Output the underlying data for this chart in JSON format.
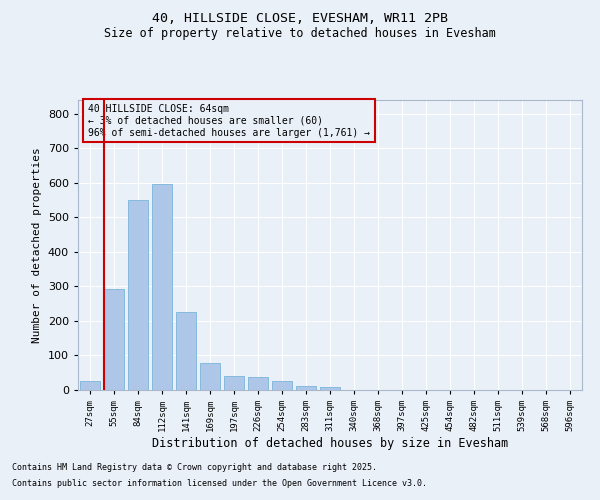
{
  "title1": "40, HILLSIDE CLOSE, EVESHAM, WR11 2PB",
  "title2": "Size of property relative to detached houses in Evesham",
  "xlabel": "Distribution of detached houses by size in Evesham",
  "ylabel": "Number of detached properties",
  "categories": [
    "27sqm",
    "55sqm",
    "84sqm",
    "112sqm",
    "141sqm",
    "169sqm",
    "197sqm",
    "226sqm",
    "254sqm",
    "283sqm",
    "311sqm",
    "340sqm",
    "368sqm",
    "397sqm",
    "425sqm",
    "454sqm",
    "482sqm",
    "511sqm",
    "539sqm",
    "568sqm",
    "596sqm"
  ],
  "values": [
    25,
    293,
    549,
    598,
    226,
    78,
    40,
    38,
    25,
    12,
    8,
    0,
    0,
    0,
    0,
    0,
    0,
    0,
    0,
    0,
    0
  ],
  "bar_color": "#aec6e8",
  "bar_edge_color": "#6aaed6",
  "vline_color": "#cc0000",
  "ylim": [
    0,
    840
  ],
  "yticks": [
    0,
    100,
    200,
    300,
    400,
    500,
    600,
    700,
    800
  ],
  "annotation_title": "40 HILLSIDE CLOSE: 64sqm",
  "annotation_line1": "← 3% of detached houses are smaller (60)",
  "annotation_line2": "96% of semi-detached houses are larger (1,761) →",
  "annotation_box_color": "#cc0000",
  "footnote1": "Contains HM Land Registry data © Crown copyright and database right 2025.",
  "footnote2": "Contains public sector information licensed under the Open Government Licence v3.0.",
  "bg_color": "#eaf0f8",
  "grid_color": "#ffffff"
}
